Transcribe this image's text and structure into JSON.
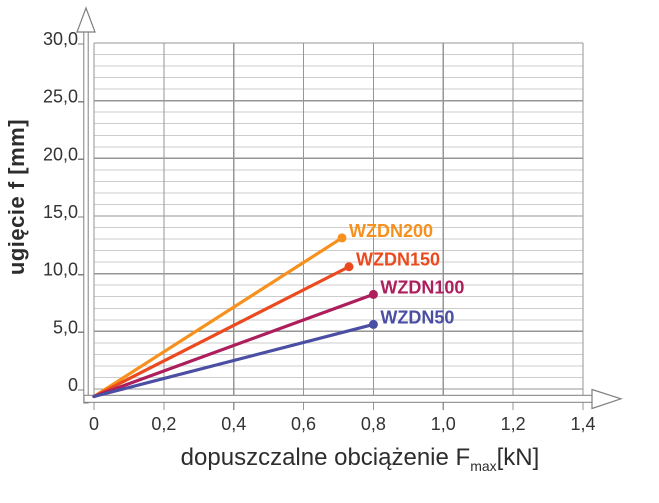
{
  "page": {
    "background": "#ffffff"
  },
  "chart_data": {
    "type": "line",
    "title": "",
    "ylabel": "ugięcie f [mm]",
    "xlabel_parts": {
      "main": "dopuszczalne obciążenie F",
      "sub": "max",
      "unit": "[kN]"
    },
    "xlim": [
      0,
      1.4
    ],
    "ylim": [
      0,
      30
    ],
    "y_minor_step": 1,
    "y_major_step": 5,
    "x_ticks": [
      {
        "value": 0,
        "label": "0"
      },
      {
        "value": 0.2,
        "label": "0,2"
      },
      {
        "value": 0.4,
        "label": "0,4"
      },
      {
        "value": 0.6,
        "label": "0,6"
      },
      {
        "value": 0.8,
        "label": "0,8"
      },
      {
        "value": 1.0,
        "label": "1,0"
      },
      {
        "value": 1.2,
        "label": "1,2"
      },
      {
        "value": 1.4,
        "label": "1,4"
      }
    ],
    "y_ticks": [
      {
        "value": 0,
        "label": "0"
      },
      {
        "value": 5,
        "label": "5,0"
      },
      {
        "value": 10,
        "label": "10,0"
      },
      {
        "value": 15,
        "label": "15,0"
      },
      {
        "value": 20,
        "label": "20,0"
      },
      {
        "value": 25,
        "label": "25,0"
      },
      {
        "value": 30,
        "label": "30,0"
      }
    ],
    "grid": {
      "enabled": true,
      "minor_color": "#cccccc",
      "major_color": "#969696"
    },
    "axis_color": "#7f7f7f",
    "text_color": "#333333",
    "legend_position": "labels-at-line-ends",
    "series": [
      {
        "name": "WZDN200",
        "color": "#F6911E",
        "points": [
          [
            0,
            0
          ],
          [
            0.71,
            13.1
          ]
        ]
      },
      {
        "name": "WZDN150",
        "color": "#EB4A1E",
        "points": [
          [
            0,
            0
          ],
          [
            0.73,
            10.6
          ]
        ]
      },
      {
        "name": "WZDN100",
        "color": "#AC1E5C",
        "points": [
          [
            0,
            0
          ],
          [
            0.8,
            8.2
          ]
        ]
      },
      {
        "name": "WZDN50",
        "color": "#4A4FA3",
        "points": [
          [
            0,
            0
          ],
          [
            0.8,
            5.6
          ]
        ]
      }
    ]
  }
}
